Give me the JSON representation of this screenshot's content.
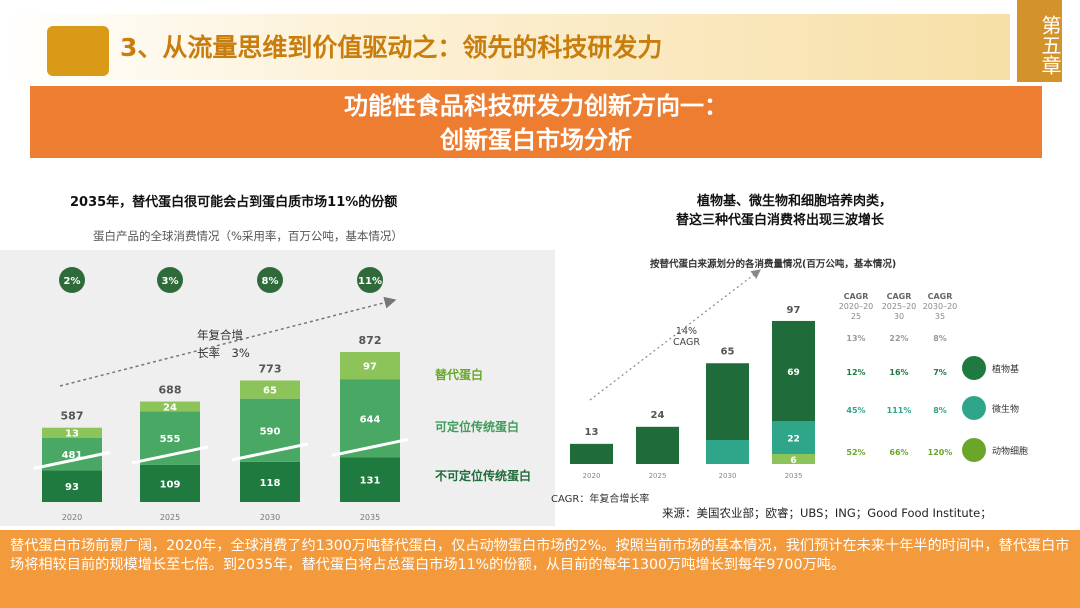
{
  "header": {
    "title": "3、从流量思维到价值驱动之：领先的科技研发力",
    "chapter_tab": "第五章"
  },
  "banner": {
    "line1": "功能性食品科技研发力创新方向一：",
    "line2": "创新蛋白市场分析"
  },
  "left_chart": {
    "title": "2035年，替代蛋白很可能会占到蛋白质市场11%的份额",
    "subtitle": "蛋白产品的全球消费情况（%采用率，百万公吨，基本情况）",
    "cagr_label_line1": "年复合增",
    "cagr_label_line2": "长率　3%",
    "legend": [
      "替代蛋白",
      "可定位传统蛋白",
      "不可定位传统蛋白"
    ],
    "colors": {
      "alt": "#8dc45a",
      "pos": "#4aa865",
      "nonpos": "#1f7a3f",
      "circle": "#2f6b3a"
    }
  },
  "right_chart": {
    "title_line1": "植物基、微生物和细胞培养肉类，",
    "title_line2": "替这三种代蛋白消费将出现三波增长",
    "subtitle": "按替代蛋白来源划分的各消费量情况(百万公吨，基本情况)",
    "cagr_label_line1": "14%",
    "cagr_label_line2": "CAGR",
    "cagr_footnote": "CAGR：年复合增长率",
    "cagr_headers": [
      {
        "name": "CAGR",
        "range": "2020–2025"
      },
      {
        "name": "CAGR",
        "range": "2025–2030"
      },
      {
        "name": "CAGR",
        "range": "2030–2035"
      }
    ],
    "cagr_rows": [
      {
        "values": [
          "13%",
          "22%",
          "8%"
        ],
        "color": "#999999"
      },
      {
        "values": [
          "12%",
          "16%",
          "7%"
        ],
        "color": "#1f7a3f",
        "label": "植物基",
        "icon": "plant-icon"
      },
      {
        "values": [
          "45%",
          "111%",
          "8%"
        ],
        "color": "#2fa68a",
        "label": "微生物",
        "icon": "microbe-icon"
      },
      {
        "values": [
          "52%",
          "66%",
          "120%"
        ],
        "color": "#6aa62a",
        "label": "动物细胞",
        "icon": "cell-icon"
      }
    ],
    "colors": {
      "plant": "#1f6b3a",
      "microbe": "#2fa68a",
      "cell": "#8dc45a"
    }
  },
  "source": "来源：美国农业部；欧睿；UBS；ING；Good Food Institute；",
  "summary": "替代蛋白市场前景广阔，2020年，全球消费了约1300万吨替代蛋白，仅占动物蛋白市场的2%。按照当前市场的基本情况，我们预计在未来十年半的时间中，替代蛋白市场将相较目前的规模增长至七倍。到2035年，替代蛋白将占总蛋白市场11%的份额，从目前的每年1300万吨增长到每年9700万吨。",
  "chart_data": [
    {
      "type": "bar",
      "title": "2035年，替代蛋白很可能会占到蛋白质市场11%的份额",
      "categories": [
        "2020",
        "2025",
        "2030",
        "2035"
      ],
      "totals": [
        587,
        688,
        773,
        872
      ],
      "adoption": [
        "2%",
        "3%",
        "8%",
        "11%"
      ],
      "series": [
        {
          "name": "不可定位传统蛋白",
          "values": [
            93,
            109,
            118,
            131
          ]
        },
        {
          "name": "可定位传统蛋白",
          "values": [
            481,
            555,
            590,
            644
          ]
        },
        {
          "name": "替代蛋白",
          "values": [
            13,
            24,
            65,
            97
          ]
        }
      ],
      "annotations": [
        "年复合增长率 3%"
      ]
    },
    {
      "type": "bar",
      "title": "按替代蛋白来源划分的各消费量情况(百万公吨，基本情况)",
      "categories": [
        "2020",
        "2025",
        "2030",
        "2035"
      ],
      "totals": [
        13,
        24,
        65,
        97
      ],
      "series_labels": {
        "2035": [
          69,
          22,
          6
        ]
      },
      "annotations": [
        "14% CAGR"
      ]
    }
  ]
}
